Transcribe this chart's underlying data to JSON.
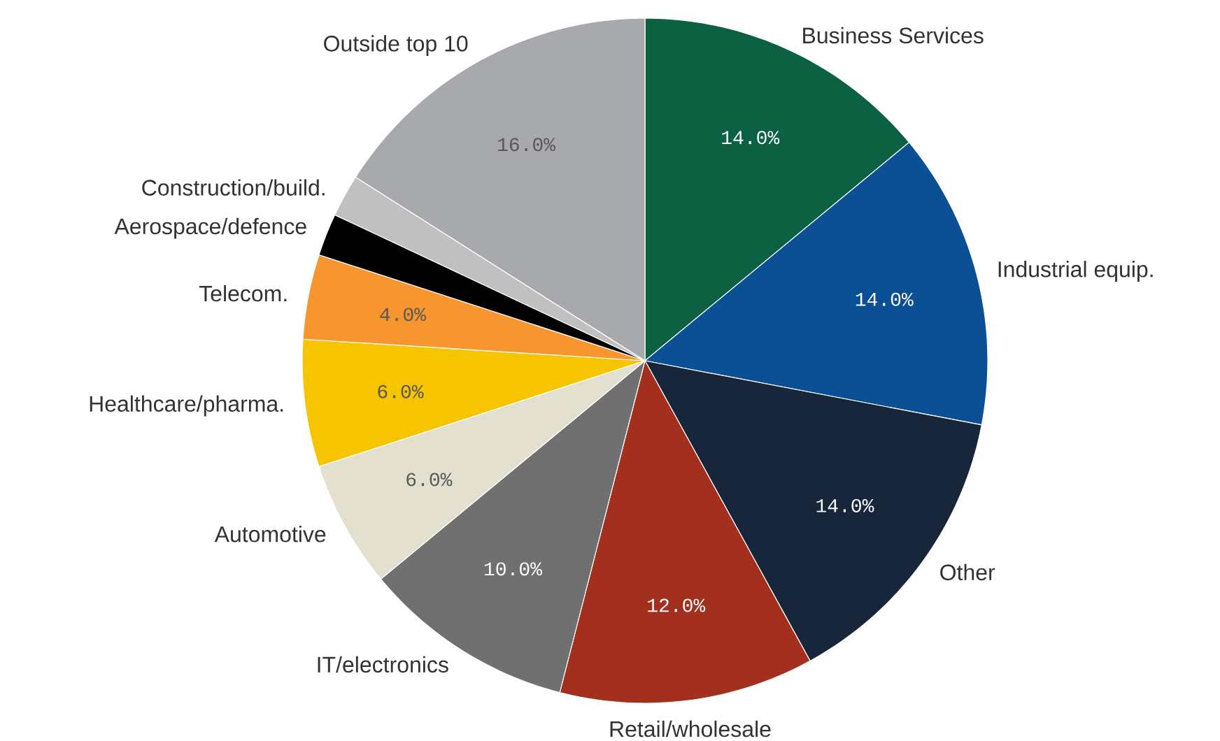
{
  "chart_data": {
    "type": "pie",
    "categories": [
      "Business Services",
      "Industrial equip.",
      "Other",
      "Retail/wholesale",
      "IT/electronics",
      "Automotive",
      "Healthcare/pharma.",
      "Telecom.",
      "Aerospace/defence",
      "Construction/build.",
      "Outside top 10"
    ],
    "values": [
      14,
      14,
      14,
      12,
      10,
      6,
      6,
      4,
      2,
      2,
      16
    ],
    "colors": [
      "#0b6141",
      "#0b4f94",
      "#17263a",
      "#a3301f",
      "#707070",
      "#e4e0cf",
      "#f7c500",
      "#f7952e",
      "#000000",
      "#c0c0c0",
      "#a8a9ad"
    ],
    "value_labels": [
      "14.0%",
      "14.0%",
      "14.0%",
      "12.0%",
      "10.0%",
      "6.0%",
      "6.0%",
      "4.0%",
      null,
      null,
      "16.0%"
    ]
  }
}
